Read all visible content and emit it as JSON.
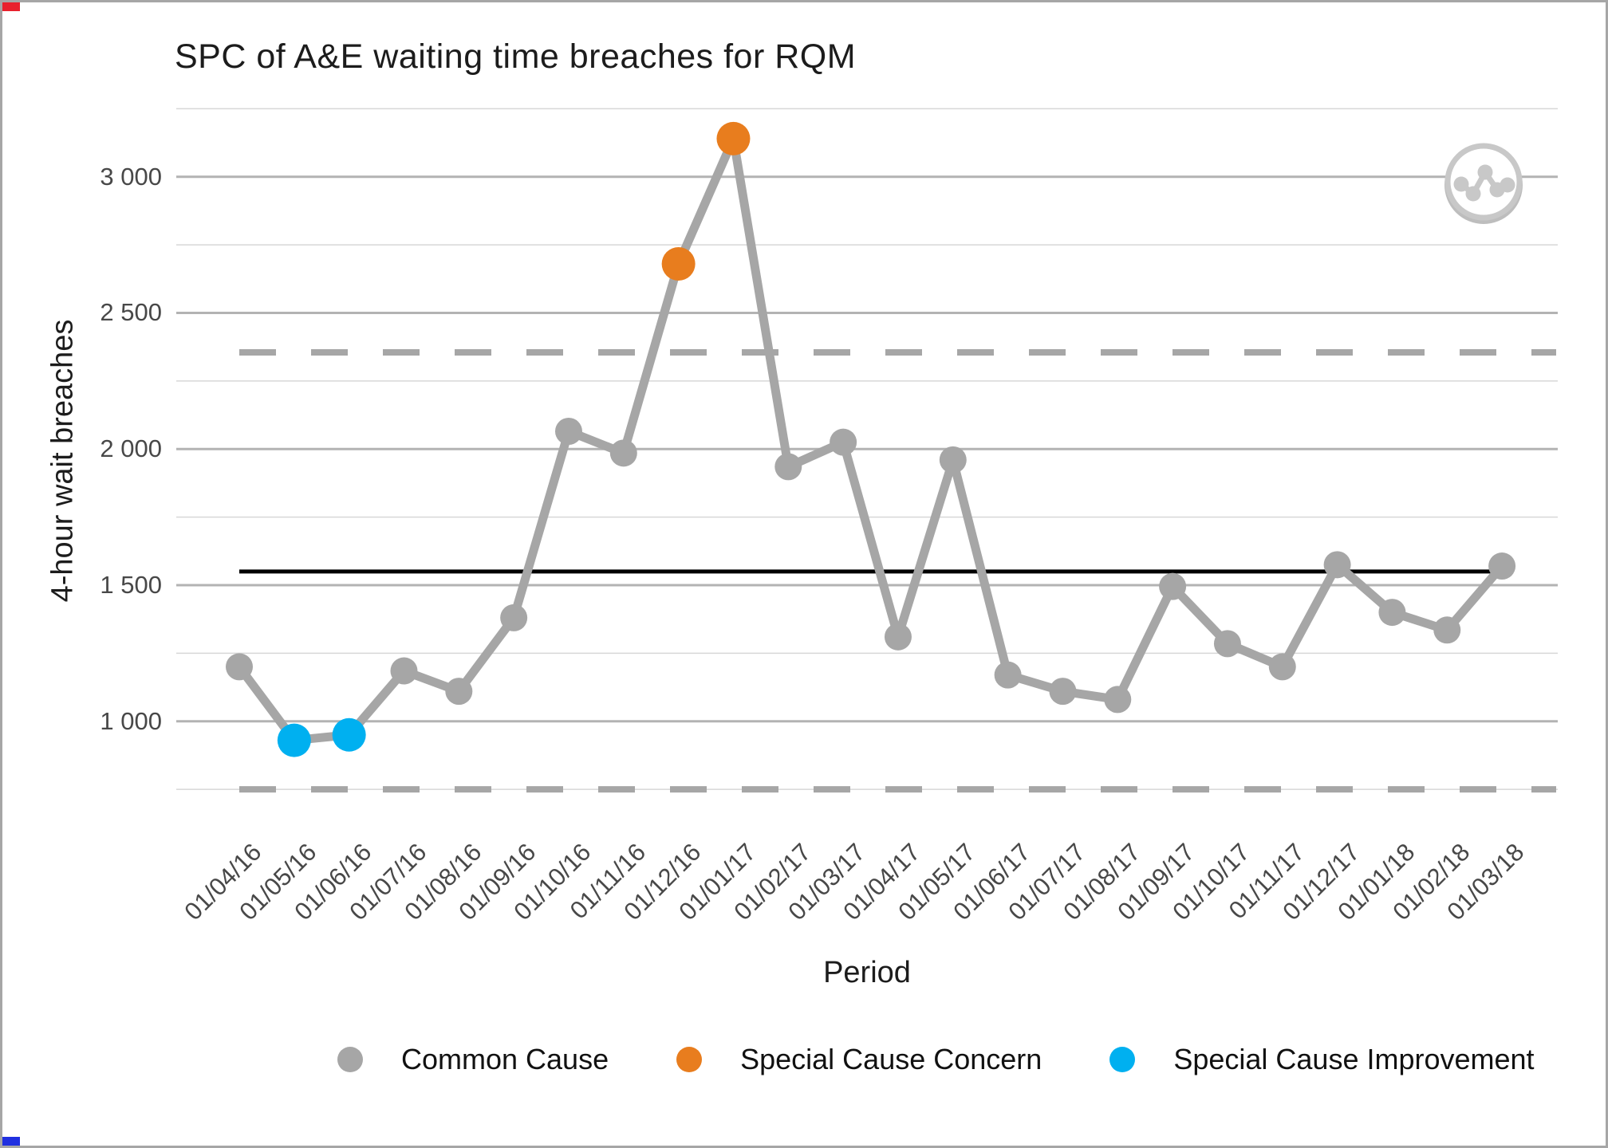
{
  "chart_data": {
    "type": "line",
    "subtype": "spc-control-chart",
    "title": "SPC of A&E waiting time breaches for RQM",
    "xlabel": "Period",
    "ylabel": "4-hour wait breaches",
    "grid": true,
    "legend_position": "bottom",
    "x": [
      "01/04/16",
      "01/05/16",
      "01/06/16",
      "01/07/16",
      "01/08/16",
      "01/09/16",
      "01/10/16",
      "01/11/16",
      "01/12/16",
      "01/01/17",
      "01/02/17",
      "01/03/17",
      "01/04/17",
      "01/05/17",
      "01/06/17",
      "01/07/17",
      "01/08/17",
      "01/09/17",
      "01/10/17",
      "01/11/17",
      "01/12/17",
      "01/01/18",
      "01/02/18",
      "01/03/18"
    ],
    "series": [
      {
        "name": "4-hour wait breaches",
        "values": [
          1200,
          930,
          950,
          1185,
          1110,
          1380,
          2065,
          1985,
          2680,
          3140,
          1935,
          2025,
          1310,
          1960,
          1170,
          1110,
          1080,
          1495,
          1285,
          1200,
          1575,
          1400,
          1335,
          1570
        ]
      }
    ],
    "point_types": [
      "common",
      "improvement",
      "improvement",
      "common",
      "common",
      "common",
      "common",
      "common",
      "concern",
      "concern",
      "common",
      "common",
      "common",
      "common",
      "common",
      "common",
      "common",
      "common",
      "common",
      "common",
      "common",
      "common",
      "common",
      "common"
    ],
    "control_lines": {
      "center": 1550,
      "upper": 2355,
      "lower": 750,
      "center_style": "solid black",
      "limit_style": "dashed gray"
    },
    "y_ticks": [
      {
        "value": 1000,
        "label": "1 000"
      },
      {
        "value": 1500,
        "label": "1 500"
      },
      {
        "value": 2000,
        "label": "2 000"
      },
      {
        "value": 2500,
        "label": "2 500"
      },
      {
        "value": 3000,
        "label": "3 000"
      }
    ],
    "minor_gridlines": [
      750,
      1250,
      1750,
      2250,
      2750,
      3250
    ],
    "ylim": [
      600,
      3250
    ],
    "legend": [
      {
        "label": "Common Cause",
        "color": "#a6a6a6"
      },
      {
        "label": "Special Cause Concern",
        "color": "#e87d1e"
      },
      {
        "label": "Special Cause Improvement",
        "color": "#00b0f0"
      }
    ]
  },
  "colors": {
    "common": "#a6a6a6",
    "concern": "#e87d1e",
    "improvement": "#00b0f0",
    "line": "#a6a6a6",
    "center_line": "#000000",
    "limit_line": "#a6a6a6",
    "gridline_major": "#b3b3b3",
    "gridline_minor": "#d7d7d7",
    "axis_text": "#484848",
    "watermark": "#c8c8c8"
  },
  "watermark": {
    "icon": "line-chart-dots"
  }
}
